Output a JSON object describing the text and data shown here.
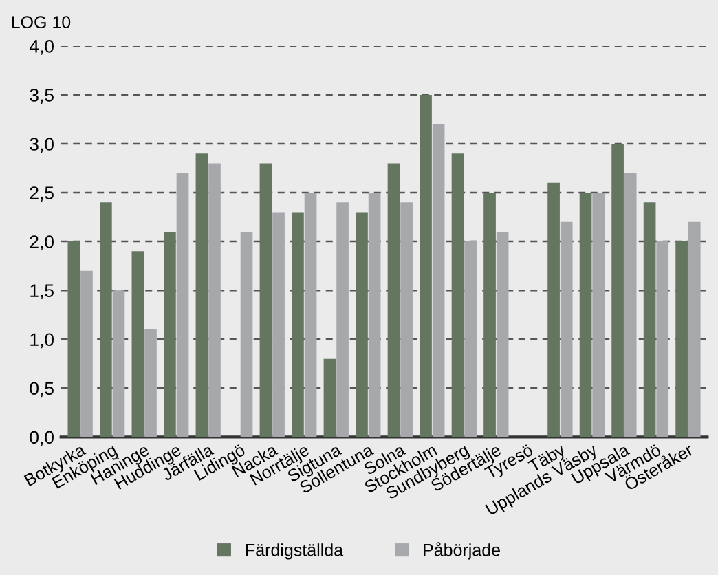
{
  "chart_data": {
    "type": "bar",
    "ylabel": "LOG 10",
    "categories": [
      "Botkyrka",
      "Enköping",
      "Haninge",
      "Huddinge",
      "Järfälla",
      "Lidingö",
      "Nacka",
      "Norrtälje",
      "Sigtuna",
      "Sollentuna",
      "Solna",
      "Stockholm",
      "Sundbyberg",
      "Södertälje",
      "Tyresö",
      "Täby",
      "Upplands Väsby",
      "Uppsala",
      "Värmdö",
      "Österåker"
    ],
    "series": [
      {
        "name": "Färdigställda",
        "color": "#647560",
        "values": [
          2.0,
          2.4,
          1.9,
          2.1,
          2.9,
          null,
          2.8,
          2.3,
          0.8,
          2.3,
          2.8,
          3.5,
          2.9,
          2.5,
          null,
          2.6,
          2.5,
          3.0,
          2.4,
          2.0
        ]
      },
      {
        "name": "Påbörjade",
        "color": "#a7a8ab",
        "values": [
          1.7,
          1.5,
          1.1,
          2.7,
          2.8,
          2.1,
          2.3,
          2.5,
          2.4,
          2.5,
          2.4,
          3.2,
          2.0,
          2.1,
          null,
          2.2,
          2.5,
          2.7,
          2.0,
          2.2
        ]
      }
    ],
    "ylim": [
      0,
      4
    ],
    "yticks": [
      {
        "value": 0,
        "label": "0,0"
      },
      {
        "value": 0.5,
        "label": "0,5"
      },
      {
        "value": 1,
        "label": "1,0"
      },
      {
        "value": 1.5,
        "label": "1,5"
      },
      {
        "value": 2,
        "label": "2,0"
      },
      {
        "value": 2.5,
        "label": "2,5"
      },
      {
        "value": 3,
        "label": "3,0"
      },
      {
        "value": 3.5,
        "label": "3,5"
      },
      {
        "value": 4,
        "label": "4,0"
      }
    ],
    "grid": "y",
    "legend": "bottom"
  }
}
